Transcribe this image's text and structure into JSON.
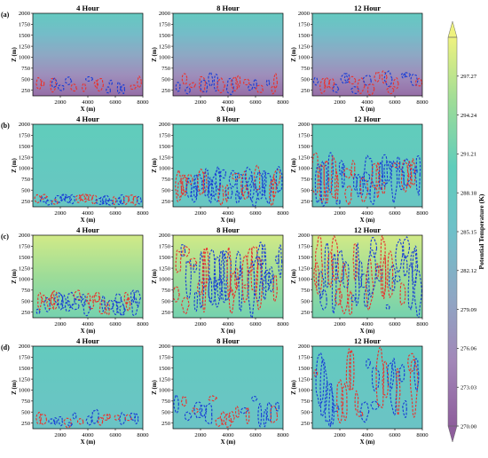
{
  "chart_data": {
    "type": "heatmap",
    "figure": {
      "column_titles": [
        "4 Hour",
        "8 Hour",
        "12 Hour"
      ],
      "row_labels": [
        "(a)",
        "(b)",
        "(c)",
        "(d)"
      ],
      "xlabel": "X (m)",
      "ylabel": "Z (m)",
      "x_ticks": [
        2000,
        4000,
        6000,
        8000
      ],
      "y_ticks": [
        250,
        500,
        750,
        1000,
        1250,
        1500,
        1750,
        2000
      ],
      "xlim": [
        0,
        8000
      ],
      "ylim": [
        120,
        2000
      ],
      "colorbar": {
        "label": "Potential Temperature (K)",
        "ticks": [
          270.0,
          273.03,
          276.06,
          279.09,
          282.12,
          285.15,
          288.18,
          291.21,
          294.24,
          297.27
        ],
        "tick_labels": [
          "270.00",
          "273.03",
          "276.06",
          "279.09",
          "282.12",
          "285.15",
          "288.18",
          "291.21",
          "294.24",
          "297.27"
        ],
        "range": [
          270.0,
          300.3
        ],
        "extend": "both",
        "colormap": [
          "#8e5e9c",
          "#a287b8",
          "#8ea7c4",
          "#6fc0c9",
          "#5fcdbb",
          "#9ddc98",
          "#eef27e"
        ]
      },
      "contour_colors": {
        "positive": "#e8342f",
        "negative": "#1a3fd6"
      }
    },
    "rows": [
      {
        "label": "(a)",
        "background_K": {
          "bottom": 272.0,
          "top": 288.5
        },
        "panels": [
          {
            "title": "4 Hour",
            "plume_top_m": 600,
            "red": 9,
            "blue": 8
          },
          {
            "title": "8 Hour",
            "plume_top_m": 650,
            "red": 10,
            "blue": 9
          },
          {
            "title": "12 Hour",
            "plume_top_m": 700,
            "red": 11,
            "blue": 10
          }
        ]
      },
      {
        "label": "(b)",
        "background_K": {
          "bottom": 287.5,
          "top": 290.0
        },
        "panels": [
          {
            "title": "4 Hour",
            "plume_top_m": 420,
            "red": 12,
            "blue": 14
          },
          {
            "title": "8 Hour",
            "plume_top_m": 1050,
            "red": 16,
            "blue": 22
          },
          {
            "title": "12 Hour",
            "plume_top_m": 1350,
            "red": 16,
            "blue": 22
          }
        ]
      },
      {
        "label": "(c)",
        "background_K": {
          "bottom": 292.0,
          "top": 298.5
        },
        "panels": [
          {
            "title": "4 Hour",
            "plume_top_m": 750,
            "red": 14,
            "blue": 20
          },
          {
            "title": "8 Hour",
            "plume_top_m": 1850,
            "red": 18,
            "blue": 24
          },
          {
            "title": "12 Hour",
            "plume_top_m": 2000,
            "red": 14,
            "blue": 24
          }
        ]
      },
      {
        "label": "(d)",
        "background_K": {
          "bottom": 286.5,
          "top": 289.0
        },
        "panels": [
          {
            "title": "4 Hour",
            "plume_top_m": 560,
            "red": 9,
            "blue": 10
          },
          {
            "title": "8 Hour",
            "plume_top_m": 900,
            "red": 10,
            "blue": 11
          },
          {
            "title": "12 Hour",
            "plume_top_m": 1950,
            "red": 12,
            "blue": 14
          }
        ]
      }
    ]
  }
}
